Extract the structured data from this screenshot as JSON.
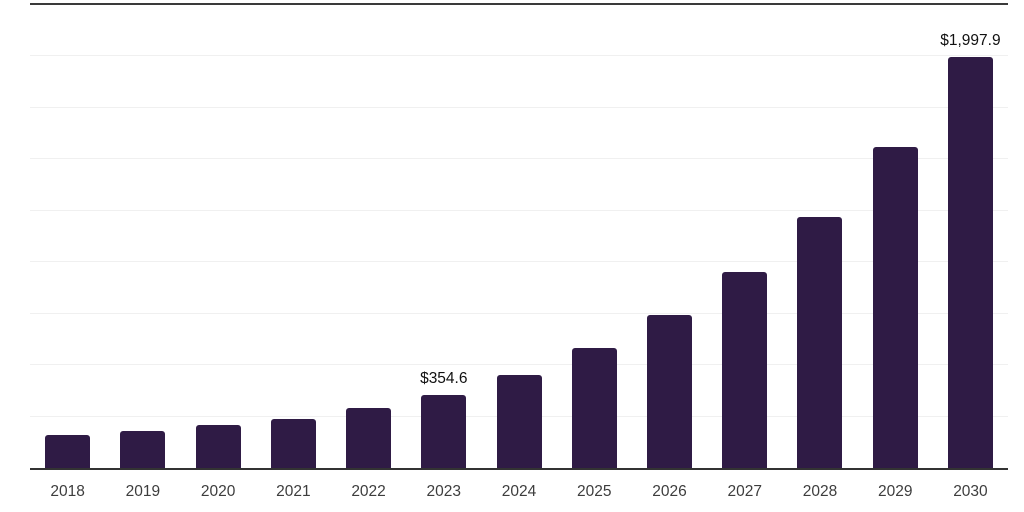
{
  "colors": {
    "bar": "#2f1b45",
    "axis_line": "#333333",
    "top_rule": "#3a3a3a",
    "gridline": "#f0f0f0",
    "tick_label": "#3d3d3d",
    "value_label": "#111111",
    "background": "#ffffff"
  },
  "chart_data": {
    "type": "bar",
    "title": "",
    "xlabel": "",
    "ylabel": "",
    "categories": [
      "2018",
      "2019",
      "2020",
      "2021",
      "2022",
      "2023",
      "2024",
      "2025",
      "2026",
      "2027",
      "2028",
      "2029",
      "2030"
    ],
    "values": [
      159.8,
      180.7,
      208.9,
      239.3,
      290.8,
      354.6,
      453.9,
      581.0,
      743.6,
      951.8,
      1218.3,
      1559.4,
      1997.9
    ],
    "value_unit": "USD",
    "labeled_points": [
      {
        "category": "2023",
        "label": "$354.6"
      },
      {
        "category": "2030",
        "label": "$1,997.9"
      }
    ],
    "ylim": [
      0,
      2250
    ],
    "gridline_step": 250,
    "grid": true,
    "legend": "none"
  }
}
